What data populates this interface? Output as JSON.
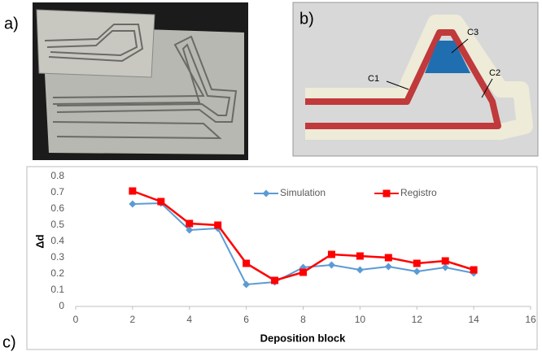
{
  "panel_labels": [
    "a)",
    "b)",
    "c)"
  ],
  "diagram_labels": [
    "C1",
    "C2",
    "C3"
  ],
  "chart_data": {
    "type": "line",
    "x_label": "Deposition block",
    "y_label": "Δd",
    "x": [
      2,
      3,
      4,
      5,
      6,
      7,
      8,
      9,
      10,
      11,
      12,
      13,
      14
    ],
    "series": [
      {
        "name": "Simulation",
        "color": "#5b9bd5",
        "marker": "diamond",
        "values": [
          0.63,
          0.635,
          0.47,
          0.48,
          0.135,
          0.15,
          0.24,
          0.255,
          0.225,
          0.245,
          0.215,
          0.24,
          0.205
        ]
      },
      {
        "name": "Registro",
        "color": "#ff0000",
        "marker": "square",
        "values": [
          0.71,
          0.645,
          0.51,
          0.5,
          0.265,
          0.16,
          0.21,
          0.32,
          0.31,
          0.3,
          0.265,
          0.28,
          0.225
        ]
      }
    ],
    "xlim": [
      0,
      16
    ],
    "xticks": [
      0,
      2,
      4,
      6,
      8,
      10,
      12,
      14,
      16
    ],
    "ylim": [
      0,
      0.8
    ],
    "yticks": [
      0,
      0.1,
      0.2,
      0.3,
      0.4,
      0.5,
      0.6,
      0.7,
      0.8
    ],
    "grid": false,
    "legend": "top"
  }
}
